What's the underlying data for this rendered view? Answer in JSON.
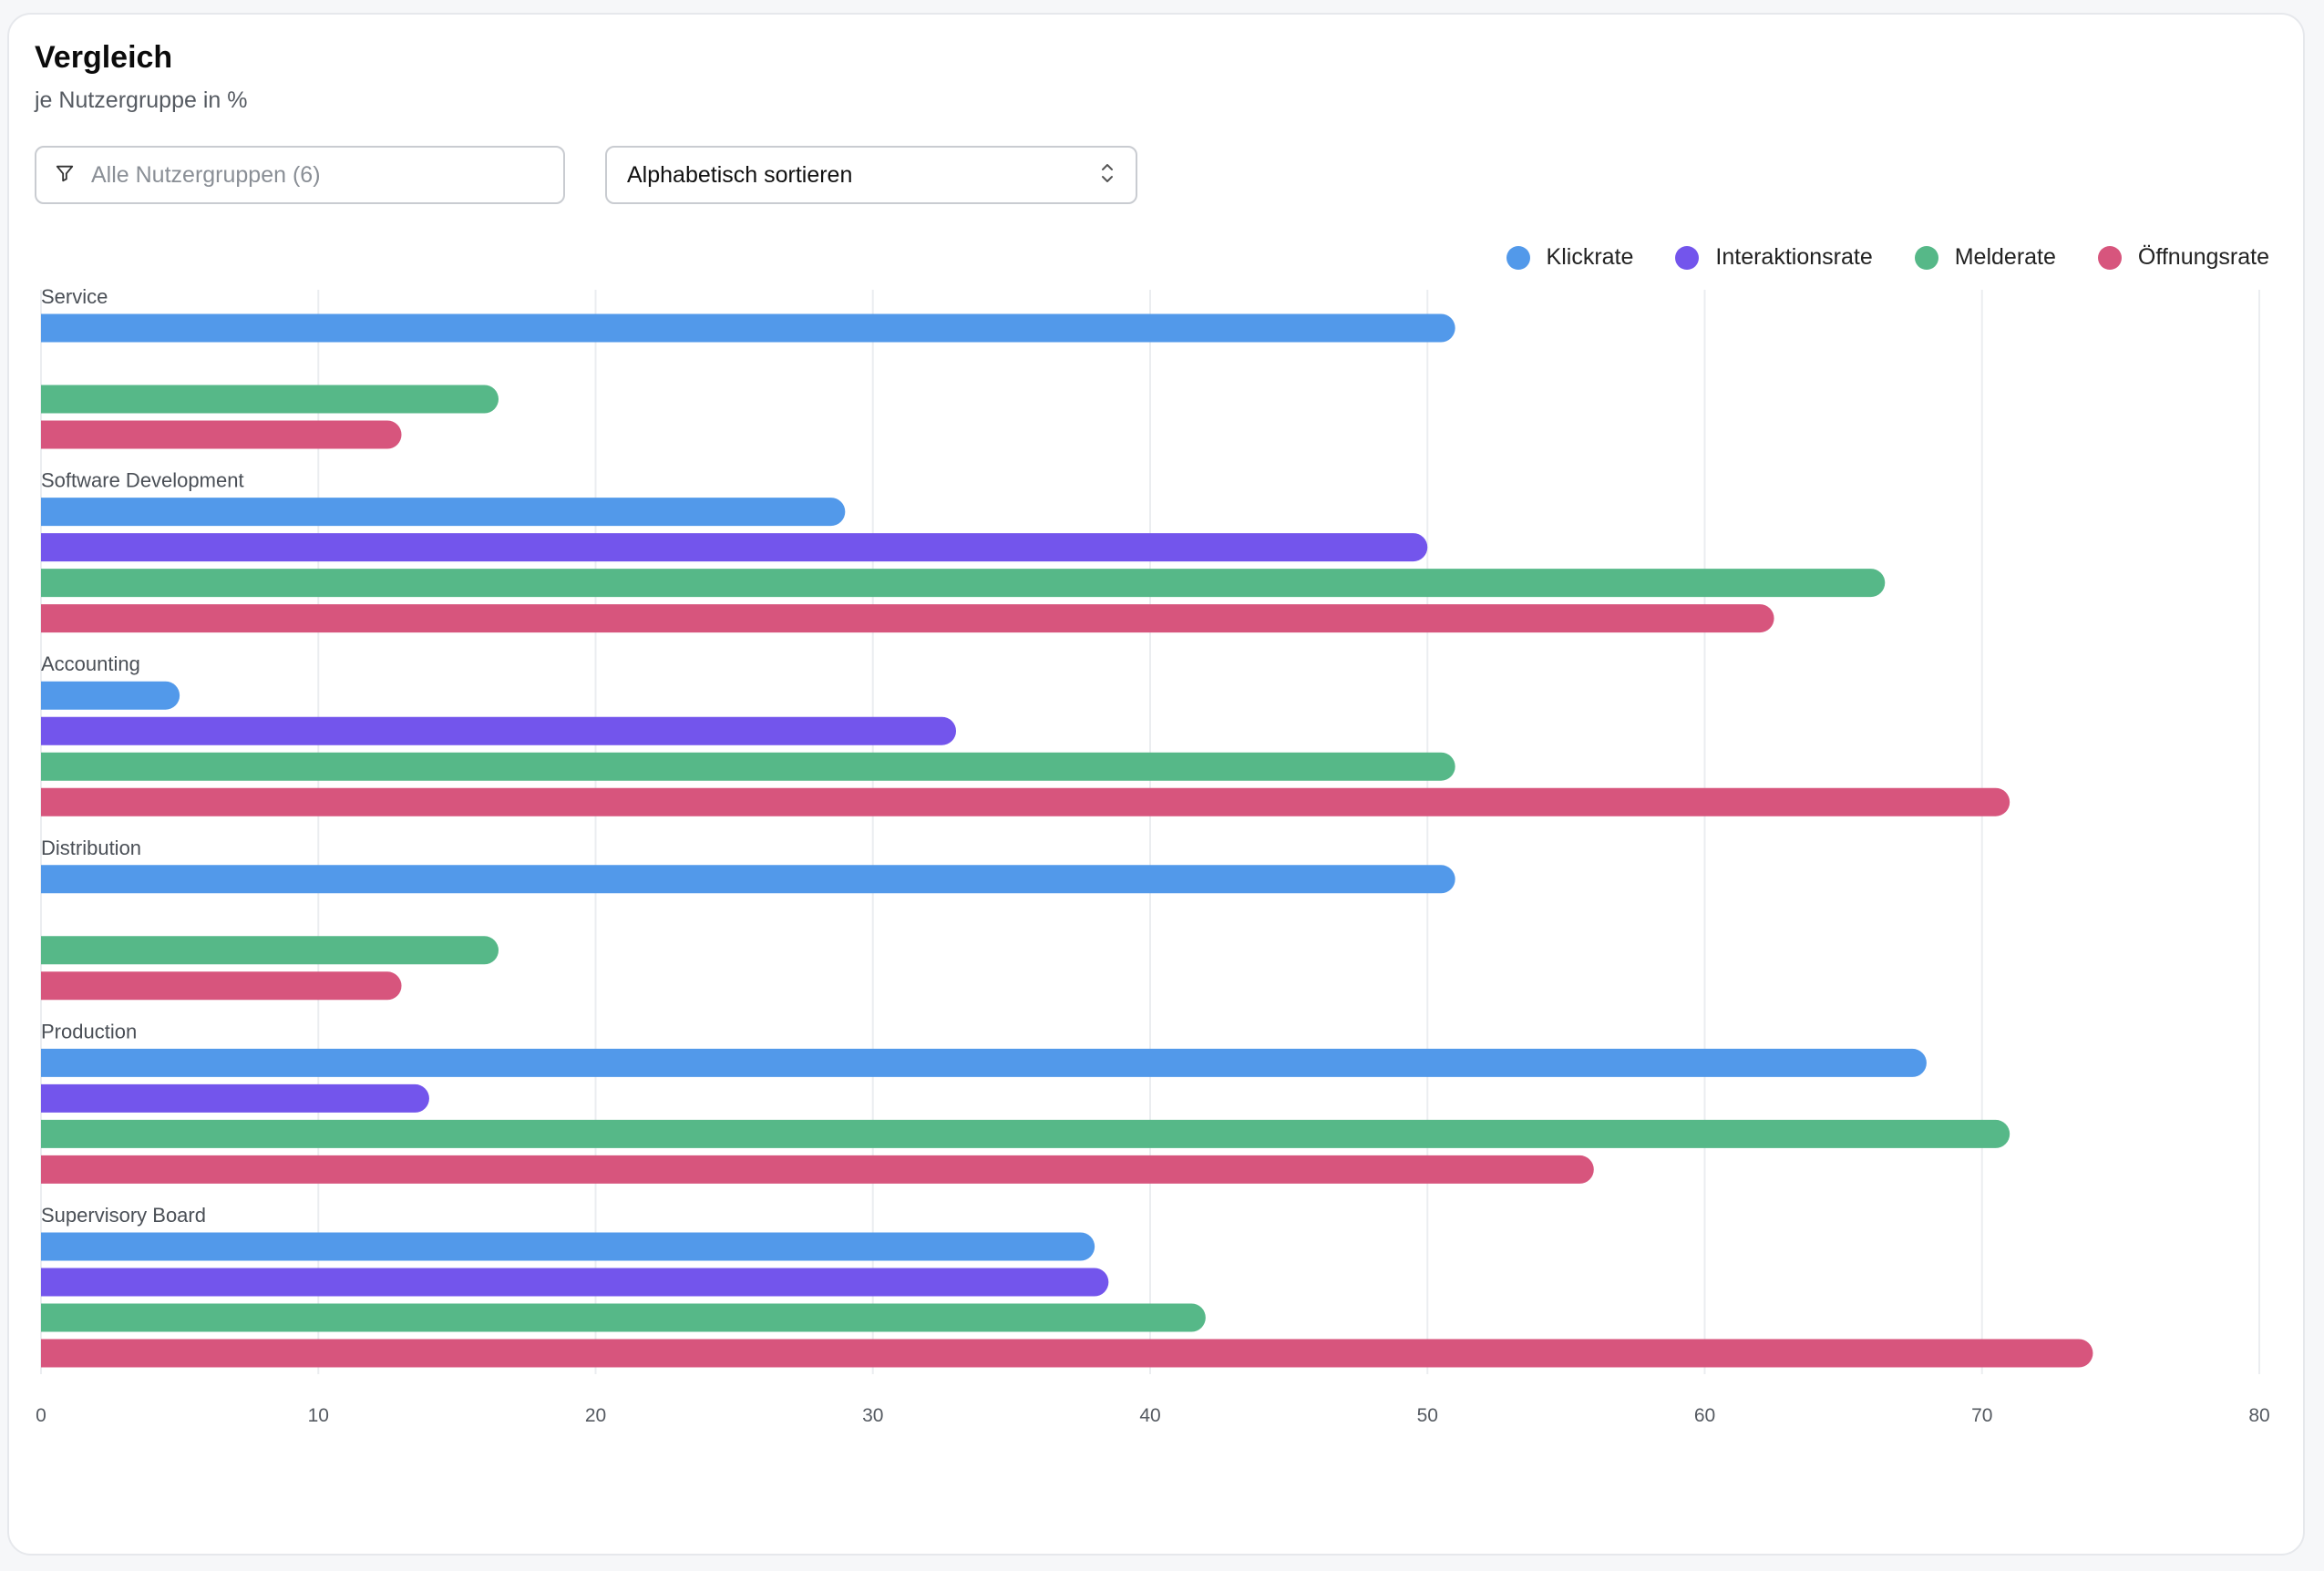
{
  "header": {
    "title": "Vergleich",
    "subtitle": "je Nutzergruppe in %"
  },
  "controls": {
    "filter_placeholder": "Alle Nutzergruppen (6)",
    "sort_value": "Alphabetisch sortieren",
    "filter_icon": "filter-icon",
    "sort_icon": "chevron-up-down-icon"
  },
  "legend": [
    {
      "label": "Klickrate",
      "color": "#5299EA"
    },
    {
      "label": "Interaktionsrate",
      "color": "#7355EC"
    },
    {
      "label": "Melderate",
      "color": "#56B888"
    },
    {
      "label": "Öffnungsrate",
      "color": "#D7557D"
    }
  ],
  "chart_data": {
    "type": "bar",
    "orientation": "horizontal",
    "categories": [
      "Service",
      "Software Development",
      "Accounting",
      "Distribution",
      "Production",
      "Supervisory Board"
    ],
    "series": [
      {
        "name": "Klickrate",
        "color": "#5299EA",
        "values": [
          51,
          29,
          5,
          51,
          68,
          38
        ]
      },
      {
        "name": "Interaktionsrate",
        "color": "#7355EC",
        "values": [
          0,
          50,
          33,
          0,
          14,
          38.5
        ]
      },
      {
        "name": "Melderate",
        "color": "#56B888",
        "values": [
          16.5,
          66.5,
          51,
          16.5,
          71,
          42
        ]
      },
      {
        "name": "Öffnungsrate",
        "color": "#D7557D",
        "values": [
          13,
          62.5,
          71,
          13,
          56,
          74
        ]
      }
    ],
    "xlim": [
      0,
      80
    ],
    "xticks": [
      "0",
      "10",
      "20",
      "30",
      "40",
      "50",
      "60",
      "70",
      "80"
    ],
    "grid": true,
    "legend_position": "top-right"
  }
}
